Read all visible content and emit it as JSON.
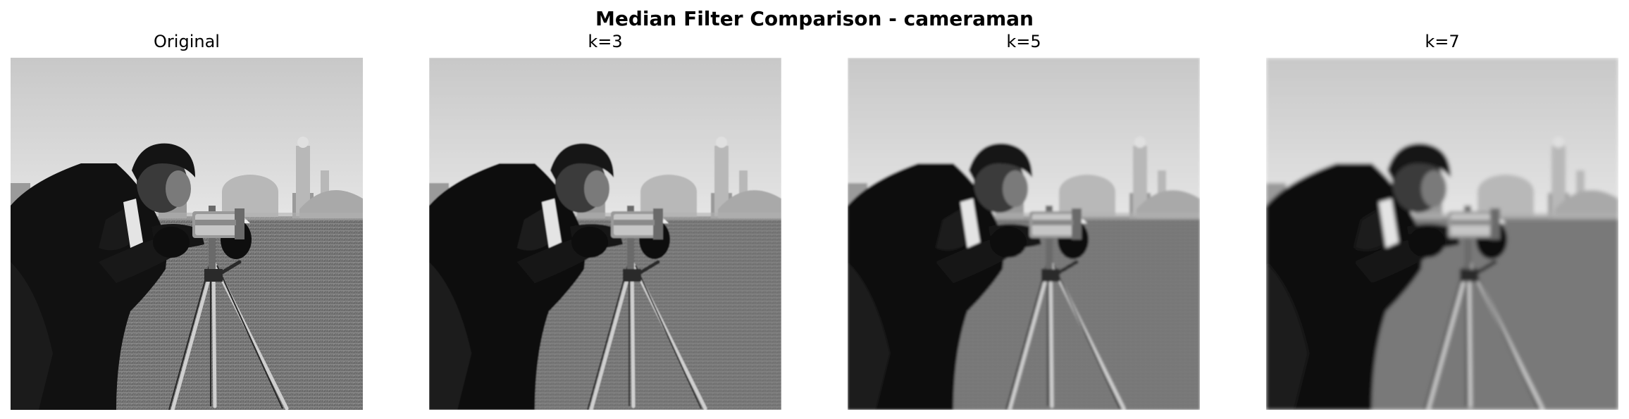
{
  "figure": {
    "title": "Median Filter Comparison - cameraman",
    "panels": [
      {
        "title": "Original",
        "blur": 0
      },
      {
        "title": "k=3",
        "blur": 0.8
      },
      {
        "title": "k=5",
        "blur": 1.6
      },
      {
        "title": "k=7",
        "blur": 2.6
      }
    ]
  }
}
